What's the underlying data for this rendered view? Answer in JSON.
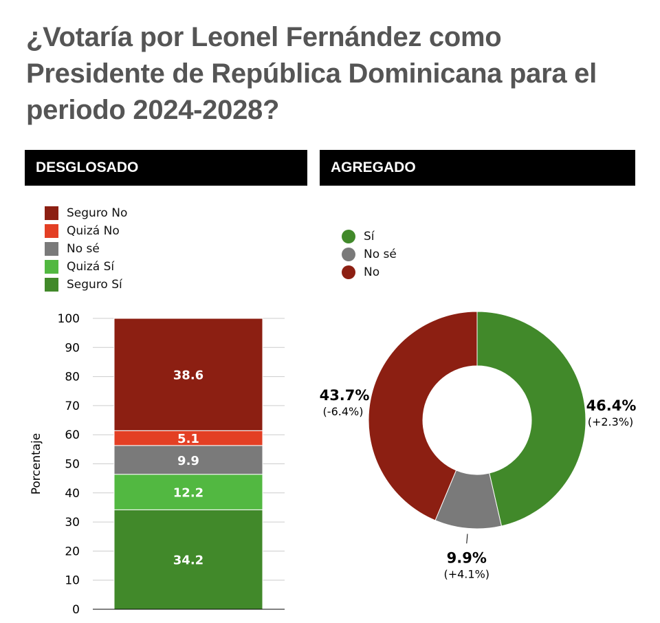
{
  "title": "¿Votaría por Leonel Fernández como Presidente de República Dominicana para el periodo 2024-2028?",
  "panels": {
    "left_header": "DESGLOSADO",
    "right_header": "AGREGADO"
  },
  "chart_data": [
    {
      "type": "bar",
      "stacked": true,
      "categories": [
        ""
      ],
      "ylabel": "Porcentaje",
      "ylim": [
        0,
        100
      ],
      "yticks": [
        "0",
        "10",
        "20",
        "30",
        "40",
        "50",
        "60",
        "70",
        "80",
        "90",
        "100"
      ],
      "grid": true,
      "legend_placement": "top-left",
      "series": [
        {
          "name": "Seguro Sí",
          "values": [
            34.2
          ],
          "label": "34.2",
          "color": "#41892a"
        },
        {
          "name": "Quizá Sí",
          "values": [
            12.2
          ],
          "label": "12.2",
          "color": "#52b841"
        },
        {
          "name": "No sé",
          "values": [
            9.9
          ],
          "label": "9.9",
          "color": "#7a7a7a"
        },
        {
          "name": "Quizá No",
          "values": [
            5.1
          ],
          "label": "5.1",
          "color": "#e33f24"
        },
        {
          "name": "Seguro No",
          "values": [
            38.6
          ],
          "label": "38.6",
          "color": "#8c1f12"
        }
      ],
      "legend_order": [
        "Seguro No",
        "Quizá No",
        "No sé",
        "Quizá Sí",
        "Seguro Sí"
      ]
    },
    {
      "type": "pie",
      "donut": true,
      "legend_placement": "top-left",
      "slices": [
        {
          "name": "Sí",
          "value": 46.4,
          "label": "46.4%",
          "change": "(+2.3%)",
          "color": "#41892a"
        },
        {
          "name": "No sé",
          "value": 9.9,
          "label": "9.9%",
          "change": "(+4.1%)",
          "color": "#7a7a7a"
        },
        {
          "name": "No",
          "value": 43.7,
          "label": "43.7%",
          "change": "(-6.4%)",
          "color": "#8c1f12"
        }
      ]
    }
  ]
}
